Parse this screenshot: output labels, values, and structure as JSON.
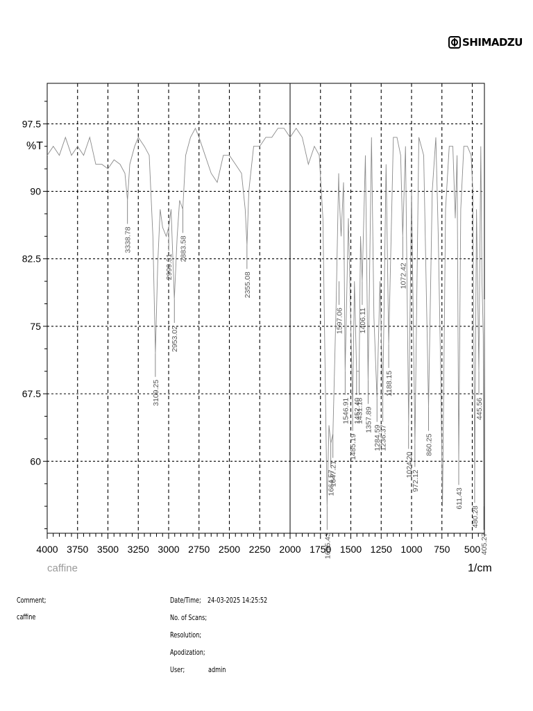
{
  "brand": {
    "name": "SHIMADZU"
  },
  "chart_data": {
    "type": "line",
    "title": "",
    "sample_label": "caffine",
    "xlabel": "1/cm",
    "ylabel": "%T",
    "x_reversed": true,
    "xlim": [
      4000,
      400
    ],
    "ylim": [
      52,
      102
    ],
    "x_ticks": [
      4000,
      3750,
      3500,
      3250,
      3000,
      2750,
      2500,
      2250,
      2000,
      1750,
      1500,
      1250,
      1000,
      750,
      500
    ],
    "y_ticks": [
      60,
      67.5,
      75,
      82.5,
      90,
      97.5
    ],
    "y_tick_labels": [
      "60",
      "67.5",
      "75",
      "82.5",
      "90",
      "97.5"
    ],
    "x_tick_labels": [
      "4000",
      "3750",
      "3500",
      "3250",
      "3000",
      "2750",
      "2500",
      "2250",
      "2000",
      "1750",
      "1500",
      "1250",
      "1000",
      "750",
      "500"
    ],
    "grid": true,
    "series": [
      {
        "x": [
          4000,
          3950,
          3900,
          3850,
          3800,
          3750,
          3700,
          3650,
          3600,
          3550,
          3500,
          3450,
          3400,
          3360,
          3338.78,
          3320,
          3280,
          3250,
          3200,
          3160,
          3130,
          3109.25,
          3090,
          3070,
          3050,
          3020,
          2999.31,
          2980,
          2953.02,
          2930,
          2910,
          2883.58,
          2860,
          2820,
          2780,
          2750,
          2700,
          2650,
          2600,
          2550,
          2500,
          2450,
          2400,
          2370,
          2355.08,
          2340,
          2300,
          2250,
          2200,
          2150,
          2100,
          2050,
          2000,
          1950,
          1900,
          1850,
          1800,
          1760,
          1730,
          1695.43,
          1680,
          1664.57,
          1647.21,
          1620,
          1600,
          1597.06,
          1580,
          1560,
          1546.91,
          1520,
          1485.19,
          1470,
          1452.4,
          1431.18,
          1420,
          1406.11,
          1380,
          1357.89,
          1330,
          1310,
          1284.59,
          1260,
          1236.37,
          1210,
          1188.15,
          1150,
          1120,
          1090,
          1072.42,
          1050,
          1024.2,
          1000,
          972.12,
          940,
          900,
          860.25,
          830,
          800,
          780,
          760,
          745,
          720,
          690,
          660,
          640,
          625,
          611.43,
          595,
          570,
          540,
          510,
          495,
          480.28,
          465,
          445.56,
          430,
          420,
          410,
          405.27,
          400
        ],
        "y": [
          94,
          95,
          94,
          96,
          94,
          95,
          94,
          96,
          93,
          93,
          92.5,
          93.5,
          93,
          92,
          89,
          93,
          95,
          96,
          95,
          94,
          85,
          72,
          82,
          88,
          86,
          85,
          86,
          88,
          78,
          85,
          89,
          88,
          94,
          96,
          97,
          96,
          94,
          92,
          91,
          94,
          94,
          93,
          92,
          88,
          84,
          90,
          95,
          95,
          96,
          96,
          97,
          97,
          96,
          97,
          96,
          93,
          95,
          94,
          87,
          55,
          64,
          62,
          63,
          78,
          92,
          90,
          85,
          91,
          70,
          87,
          66,
          80,
          70,
          70,
          85,
          80,
          94,
          69,
          96,
          76,
          67,
          80,
          67,
          93,
          73,
          96,
          96,
          94,
          85,
          95,
          64,
          90,
          62,
          96,
          94,
          66,
          90,
          96,
          85,
          70,
          55,
          88,
          95,
          95,
          87,
          94,
          60,
          88,
          95,
          95,
          94,
          90,
          58,
          88,
          70,
          95,
          80,
          74,
          55,
          78
        ]
      }
    ],
    "peaks": [
      {
        "x": 3338.78,
        "y": 89,
        "label": "3338.78"
      },
      {
        "x": 3109.25,
        "y": 72,
        "label": "3109.25"
      },
      {
        "x": 2999.31,
        "y": 86,
        "label": "2999.31"
      },
      {
        "x": 2953.02,
        "y": 78,
        "label": "2953.02"
      },
      {
        "x": 2883.58,
        "y": 88,
        "label": "2883.58"
      },
      {
        "x": 2355.08,
        "y": 84,
        "label": "2355.08"
      },
      {
        "x": 1695.43,
        "y": 55,
        "label": "1695.43"
      },
      {
        "x": 1664.57,
        "y": 62,
        "label": "1664.57"
      },
      {
        "x": 1647.21,
        "y": 63,
        "label": "1647.21"
      },
      {
        "x": 1597.06,
        "y": 80,
        "label": "1597.06"
      },
      {
        "x": 1546.91,
        "y": 70,
        "label": "1546.91"
      },
      {
        "x": 1485.19,
        "y": 66,
        "label": "1485.19"
      },
      {
        "x": 1452.4,
        "y": 70,
        "label": "1452.40"
      },
      {
        "x": 1431.18,
        "y": 70,
        "label": "1431.18"
      },
      {
        "x": 1406.11,
        "y": 80,
        "label": "1406.11"
      },
      {
        "x": 1357.89,
        "y": 69,
        "label": "1357.89"
      },
      {
        "x": 1284.59,
        "y": 67,
        "label": "1284.59"
      },
      {
        "x": 1236.37,
        "y": 67,
        "label": "1236.37"
      },
      {
        "x": 1188.15,
        "y": 73,
        "label": "1188.15"
      },
      {
        "x": 1072.42,
        "y": 85,
        "label": "1072.42"
      },
      {
        "x": 1024.2,
        "y": 64,
        "label": "1024.20"
      },
      {
        "x": 972.12,
        "y": 62,
        "label": "972.12"
      },
      {
        "x": 860.25,
        "y": 66,
        "label": "860.25"
      },
      {
        "x": 611.43,
        "y": 60,
        "label": "611.43"
      },
      {
        "x": 480.28,
        "y": 58,
        "label": "480.28"
      },
      {
        "x": 445.56,
        "y": 70,
        "label": "445.56"
      },
      {
        "x": 405.27,
        "y": 55,
        "label": "405.27"
      }
    ]
  },
  "info": {
    "comment_label": "Comment;",
    "comment_value": "caffine",
    "datetime_label": "Date/Time;",
    "datetime_value": "24-03-2025 14:25:52",
    "scans_label": "No. of Scans;",
    "resolution_label": "Resolution;",
    "apodization_label": "Apodization;",
    "user_label": "User;",
    "user_value": "admin"
  }
}
